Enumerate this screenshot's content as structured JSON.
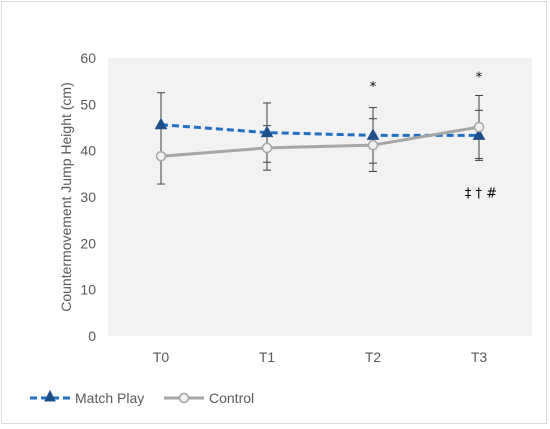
{
  "chart_data": {
    "type": "line",
    "title": "",
    "xlabel": "",
    "ylabel": "Countermovement Jump Height (cm)",
    "ylim": [
      0,
      60
    ],
    "yticks": [
      0,
      10,
      20,
      30,
      40,
      50,
      60
    ],
    "categories": [
      "T0",
      "T1",
      "T2",
      "T3"
    ],
    "grid": false,
    "legend": "bottom-left",
    "series": [
      {
        "name": "Match Play",
        "values": [
          45.6,
          43.9,
          43.3,
          43.3
        ],
        "error": [
          6.9,
          6.4,
          6.0,
          5.4
        ],
        "color": "#1f6fc5",
        "marker": "triangle",
        "line": "dashed"
      },
      {
        "name": "Control",
        "values": [
          38.8,
          40.6,
          41.2,
          45.1
        ],
        "error": [
          6.0,
          4.8,
          5.7,
          6.8
        ],
        "color": "#a6a6a6",
        "marker": "circle",
        "line": "solid"
      }
    ],
    "annotations": [
      {
        "category": "T2",
        "y": 54,
        "text": "*"
      },
      {
        "category": "T3",
        "y": 56,
        "text": "*"
      },
      {
        "category": "T3",
        "y": 31,
        "text": "‡ † #"
      }
    ]
  }
}
